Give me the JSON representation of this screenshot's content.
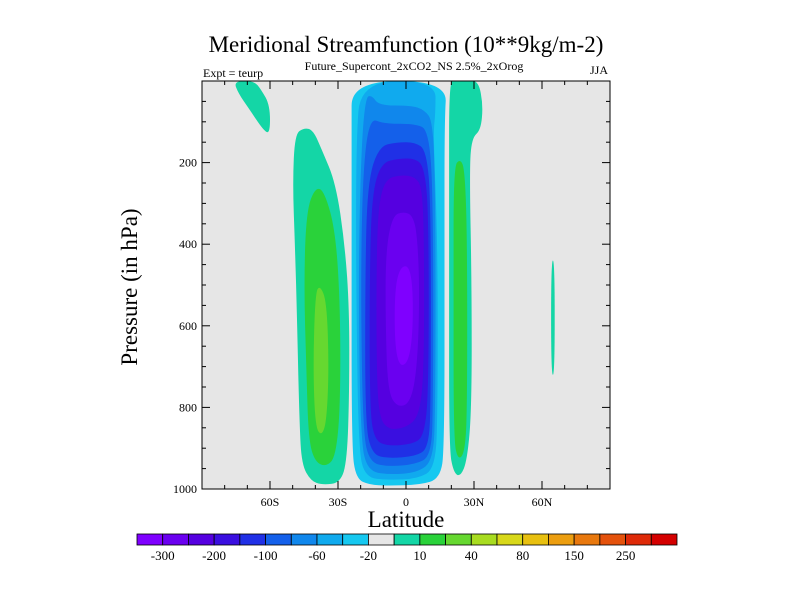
{
  "chart_data": {
    "type": "contour",
    "title": "Meridional Streamfunction (10**9kg/m-2)",
    "subtitle_left": "Expt = teurp",
    "subtitle_center": "Future_Supercont_2xCO2_NS 2.5%_2xOrog",
    "subtitle_right": "JJA",
    "xlabel": "Latitude",
    "ylabel": "Pressure (in hPa)",
    "xlim": [
      -90,
      90
    ],
    "ylim": [
      1000,
      0
    ],
    "x_ticks": [
      {
        "value": -60,
        "label": "60S"
      },
      {
        "value": -30,
        "label": "30S"
      },
      {
        "value": 0,
        "label": "0"
      },
      {
        "value": 30,
        "label": "30N"
      },
      {
        "value": 60,
        "label": "60N"
      }
    ],
    "y_ticks": [
      {
        "value": 200,
        "label": "200"
      },
      {
        "value": 400,
        "label": "400"
      },
      {
        "value": 600,
        "label": "600"
      },
      {
        "value": 800,
        "label": "800"
      },
      {
        "value": 1000,
        "label": "1000"
      }
    ],
    "background_color": "#e6e6e6",
    "colorbar": {
      "colors": [
        "#7f00ff",
        "#6a00f0",
        "#5500e0",
        "#3a0fe0",
        "#2030e6",
        "#1460ea",
        "#1087ec",
        "#10aaee",
        "#16c8f0",
        "#e6e6e6",
        "#14d6a6",
        "#2ad23a",
        "#66d830",
        "#a8dc20",
        "#d8d81a",
        "#e8c010",
        "#ec9e10",
        "#e8780e",
        "#e4520c",
        "#de2a08",
        "#d40000"
      ],
      "labels": [
        "-300",
        "-200",
        "-100",
        "-60",
        "-20",
        "10",
        "40",
        "80",
        "150",
        "250"
      ]
    },
    "cells": [
      {
        "name": "southern-positive-cell",
        "lat": [
          -45,
          -28
        ],
        "p": [
          1000,
          120
        ],
        "values": "10 to 80"
      },
      {
        "name": "tropical-negative-cell",
        "lat": [
          -20,
          15
        ],
        "p": [
          1000,
          0
        ],
        "values": "-300 to -20"
      },
      {
        "name": "northern-positive-cell",
        "lat": [
          20,
          33
        ],
        "p": [
          1000,
          0
        ],
        "values": "10 to 40"
      },
      {
        "name": "northern-polar-streak",
        "lat": [
          64,
          65.5
        ],
        "p": [
          730,
          430
        ],
        "values": "10"
      }
    ]
  }
}
